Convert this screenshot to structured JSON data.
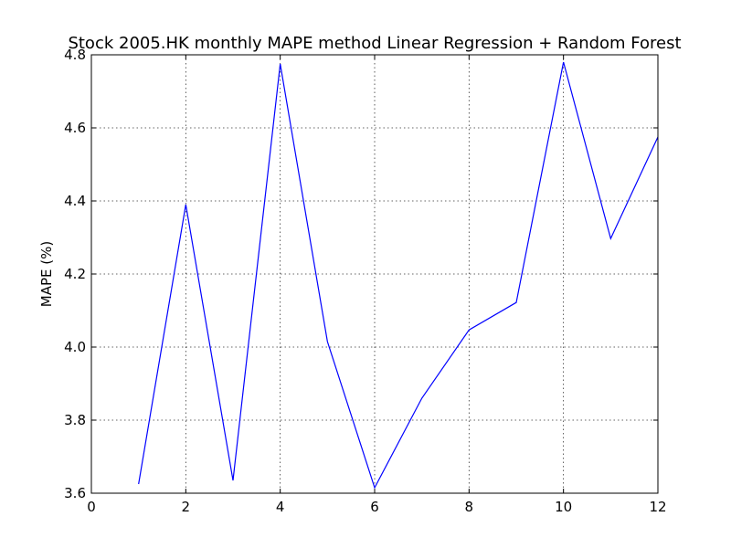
{
  "chart_data": {
    "type": "line",
    "title": "Stock 2005.HK monthly MAPE method Linear Regression + Random Forest",
    "xlabel": "",
    "ylabel": "MAPE (%)",
    "xlim": [
      0,
      12
    ],
    "ylim": [
      3.6,
      4.8
    ],
    "xticks": [
      0,
      2,
      4,
      6,
      8,
      10,
      12
    ],
    "yticks": [
      3.6,
      3.8,
      4.0,
      4.2,
      4.4,
      4.6,
      4.8
    ],
    "xtick_labels": [
      "0",
      "2",
      "4",
      "6",
      "8",
      "10",
      "12"
    ],
    "ytick_labels": [
      "3.6",
      "3.8",
      "4.0",
      "4.2",
      "4.4",
      "4.6",
      "4.8"
    ],
    "grid": true,
    "series": [
      {
        "color": "#0000ff",
        "x": [
          1,
          2,
          3,
          4,
          5,
          6,
          7,
          8,
          9,
          10,
          11,
          12
        ],
        "y": [
          3.625,
          4.39,
          3.635,
          4.775,
          4.015,
          3.615,
          3.86,
          4.047,
          4.122,
          4.78,
          4.297,
          4.575
        ]
      }
    ]
  }
}
